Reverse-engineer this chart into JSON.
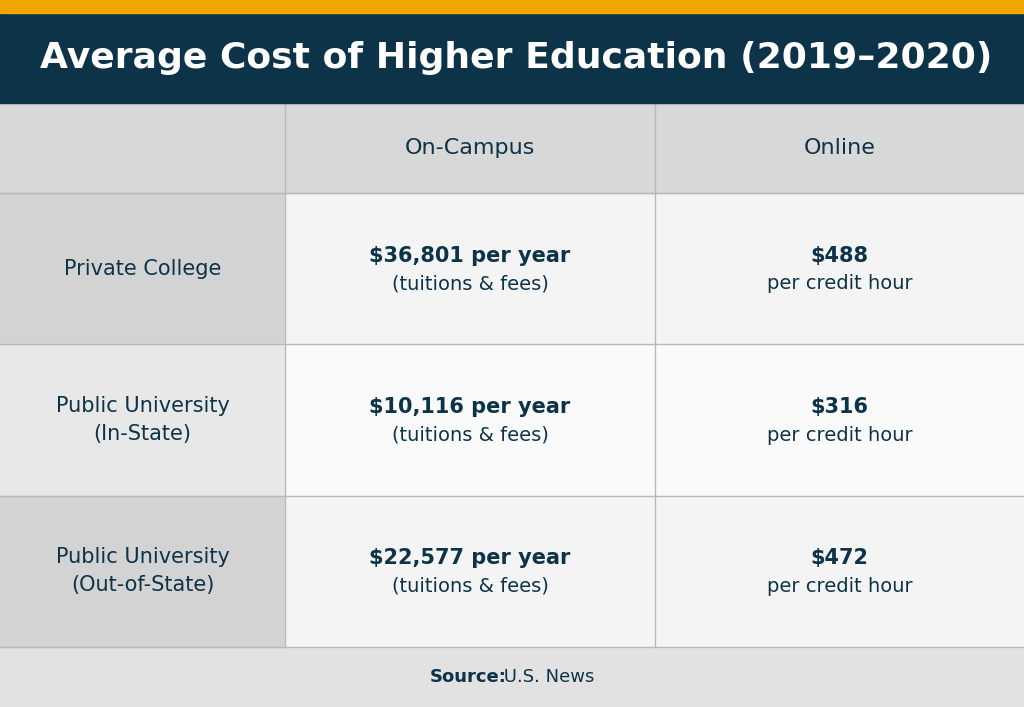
{
  "title": "Average Cost of Higher Education (2019–2020)",
  "title_bg": "#0d3349",
  "title_color": "#ffffff",
  "orange_bar_color": "#f0a500",
  "bg_color": "#e2e2e2",
  "header_cell_bg": "#d8d8d8",
  "header_text_color": "#0d3349",
  "body_text_color": "#0d3349",
  "row_colors_label": [
    "#d3d3d3",
    "#e8e8e8",
    "#d3d3d3"
  ],
  "row_colors_data": [
    "#f4f4f4",
    "#fafafa",
    "#f4f4f4"
  ],
  "source_bold": "Source:",
  "source_plain": " U.S. News",
  "col_headers": [
    "On-Campus",
    "Online"
  ],
  "rows": [
    {
      "label_line1": "Private College",
      "label_line2": "",
      "oncampus_bold": "$36,801 per year",
      "oncampus_normal": "(tuitions & fees)",
      "online_bold": "$488",
      "online_normal": "per credit hour"
    },
    {
      "label_line1": "Public University",
      "label_line2": "(In-State)",
      "oncampus_bold": "$10,116 per year",
      "oncampus_normal": "(tuitions & fees)",
      "online_bold": "$316",
      "online_normal": "per credit hour"
    },
    {
      "label_line1": "Public University",
      "label_line2": "(Out-of-State)",
      "oncampus_bold": "$22,577 per year",
      "oncampus_normal": "(tuitions & fees)",
      "online_bold": "$472",
      "online_normal": "per credit hour"
    }
  ]
}
